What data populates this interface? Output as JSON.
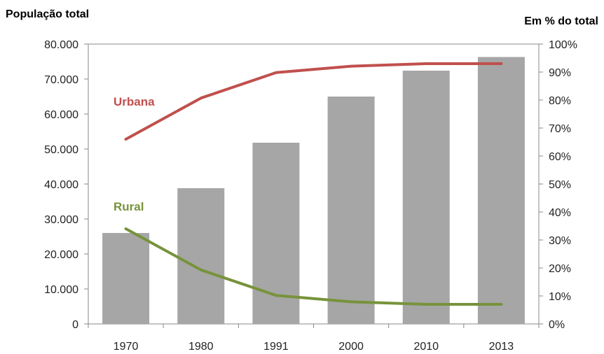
{
  "chart_data": {
    "type": "bar",
    "left_axis_title": "População total",
    "right_axis_title": "Em % do total",
    "categories": [
      "1970",
      "1980",
      "1991",
      "2000",
      "2010",
      "2013"
    ],
    "bars": {
      "values": [
        26000,
        38800,
        51800,
        65000,
        72400,
        76300
      ],
      "color": "#a6a6a6"
    },
    "line_series": [
      {
        "name": "Urbana",
        "axis": "right",
        "values": [
          66,
          80.7,
          89.8,
          92.1,
          93.0,
          93.0
        ],
        "color": "#c0504d"
      },
      {
        "name": "Rural",
        "axis": "right",
        "values": [
          34,
          19.3,
          10.2,
          7.9,
          7.0,
          7.0
        ],
        "color": "#77933c"
      }
    ],
    "left_axis": {
      "min": 0,
      "max": 80000,
      "ticks": [
        "0",
        "10.000",
        "20.000",
        "30.000",
        "40.000",
        "50.000",
        "60.000",
        "70.000",
        "80.000"
      ]
    },
    "right_axis": {
      "min": 0,
      "max": 100,
      "ticks": [
        "0%",
        "10%",
        "20%",
        "30%",
        "40%",
        "50%",
        "60%",
        "70%",
        "80%",
        "90%",
        "100%"
      ]
    },
    "grid": false,
    "legend": "inline labels"
  }
}
